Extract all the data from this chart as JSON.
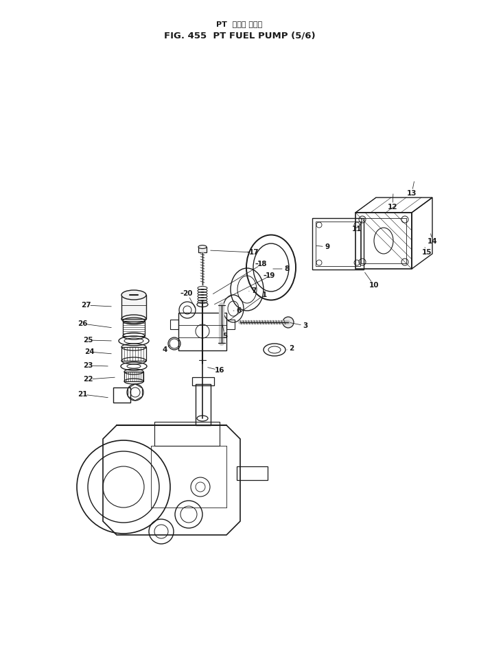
{
  "title_jp": "PT  フェル ポンプ",
  "title_en": "FIG. 455  PT FUEL PUMP (5/6)",
  "bg_color": "#ffffff",
  "line_color": "#1a1a1a",
  "fig_width": 6.98,
  "fig_height": 9.74,
  "dpi": 100
}
